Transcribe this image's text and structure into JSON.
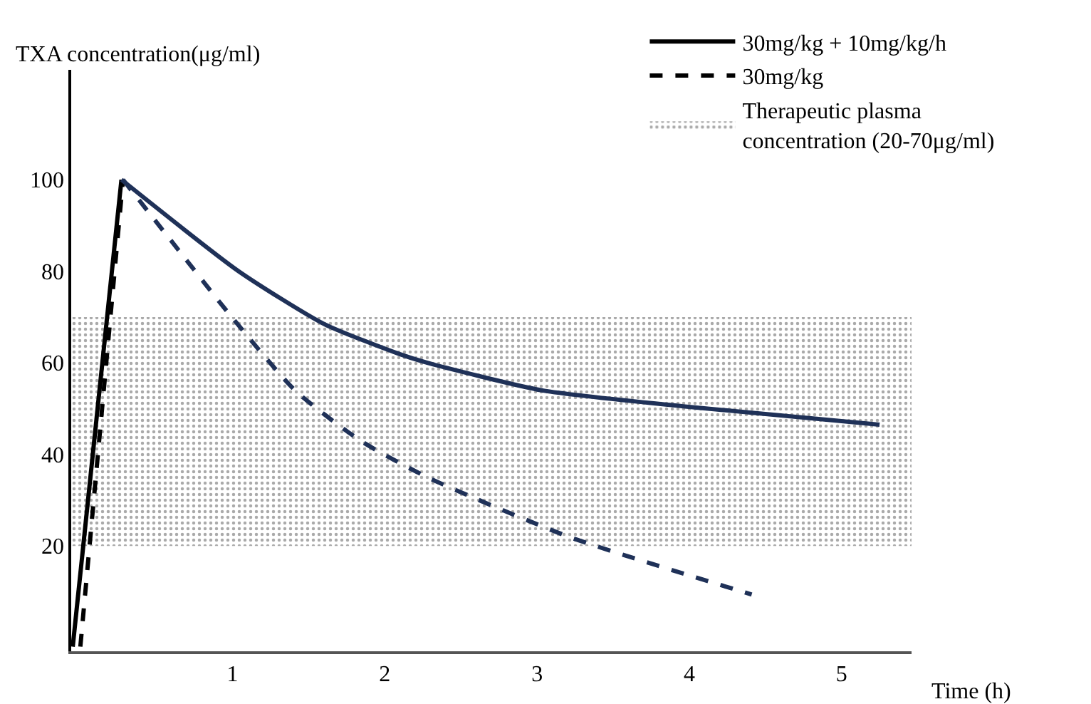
{
  "chart_data": {
    "type": "line",
    "xlabel": "Time (h)",
    "ylabel": "TXA concentration(μg/ml)",
    "xlim": [
      -0.06,
      5.46
    ],
    "ylim": [
      -3,
      124
    ],
    "xticks": [
      1,
      2,
      3,
      4,
      5
    ],
    "yticks": [
      20,
      40,
      60,
      80,
      100
    ],
    "legend": "top right",
    "marker": "none",
    "series": [
      {
        "name": "30mg/kg + 10mg/kg/h",
        "color": "#000000",
        "line_style": "solid",
        "x": [
          -0.05,
          0.27
        ],
        "values": [
          -2,
          100
        ]
      },
      {
        "name": "30mg/kg",
        "color": "#000000",
        "line_style": "dashed",
        "x": [
          0.0,
          0.28
        ],
        "values": [
          -2,
          100
        ]
      },
      {
        "color": "#1f3158",
        "line_style": "solid",
        "x": [
          0.27,
          1.04,
          1.6,
          2.09,
          2.28,
          3.03,
          3.96,
          5.25
        ],
        "values": [
          100,
          80,
          68.5,
          62,
          60,
          54,
          50.5,
          46.5
        ]
      },
      {
        "color": "#1f3158",
        "line_style": "dashed",
        "x": [
          0.28,
          0.66,
          0.97,
          1.41,
          1.84,
          2.28,
          3.21,
          4.41
        ],
        "values": [
          100,
          84,
          71,
          54,
          43,
          35,
          22,
          9.4
        ]
      }
    ],
    "bands": [
      {
        "axis": "y",
        "from": 20,
        "to": 70,
        "label": "Therapeutic plasma\nconcentration (20-70μg/ml)",
        "color": "#555555"
      }
    ]
  }
}
